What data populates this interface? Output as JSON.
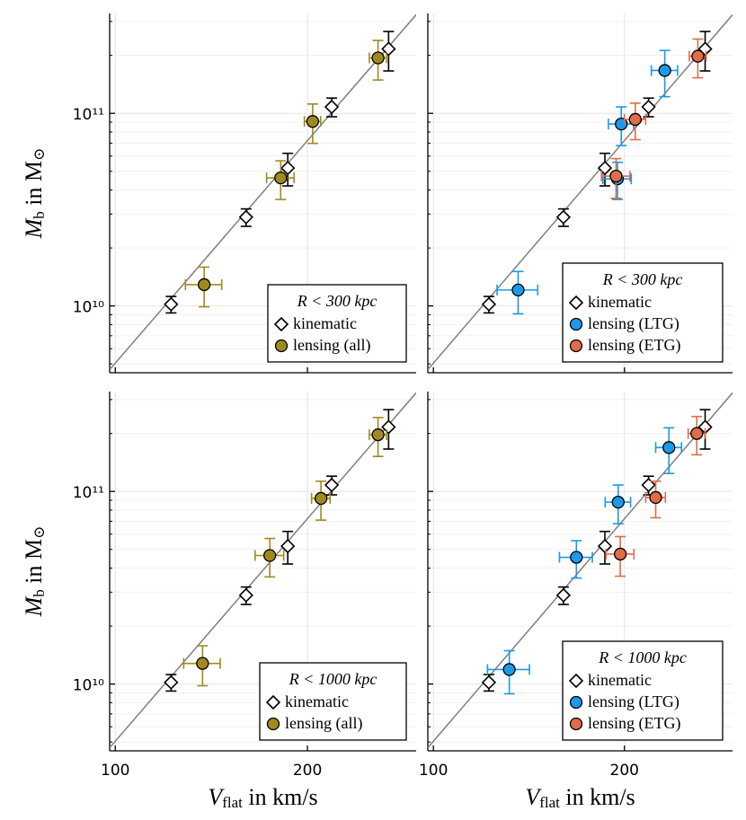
{
  "chart_data": [
    {
      "type": "scatter",
      "log_x": true,
      "log_y": true,
      "grid": true,
      "minor_grid": true,
      "xlim": [
        98,
        296
      ],
      "ylim": [
        4500000000.0,
        330000000000.0
      ],
      "xticks": [
        100,
        200
      ],
      "show_xtick_labels": false,
      "show_ytick_labels": true,
      "yticks": [
        {
          "value": 10000000000.0,
          "label": "10¹⁰"
        },
        {
          "value": 100000000000.0,
          "label": "10¹¹"
        }
      ],
      "ylabel": [
        {
          "text": "M",
          "sub": false
        },
        {
          "text": "b",
          "sub": true
        },
        {
          "text": " in M",
          "sub": false
        },
        {
          "text": "⊙",
          "sub": true
        }
      ],
      "legend": "bottom right",
      "legend_title": "R < 300 kpc",
      "line": {
        "x": [
          98,
          296
        ],
        "y": [
          4670000000.0,
          325000000000.0
        ],
        "color": "#808080"
      },
      "series": [
        {
          "name": "kinematic",
          "marker": "diamond",
          "color": "#ffffff",
          "error_color": "#000000",
          "x": [
            122.3,
            160.3,
            186.3,
            218.3,
            268
          ],
          "values": [
            10200000000.0,
            28900000000.0,
            52000000000.0,
            108000000000.0,
            216000000000.0
          ],
          "yerr": [
            1000000000.0,
            3000000000.0,
            10000000000.0,
            12000000000.0,
            50000000000.0
          ]
        },
        {
          "name": "lensing (all)",
          "marker": "circle",
          "color": "#a08a1e",
          "error_color": "#a08a1e",
          "x": [
            137.8,
            181.6,
            203.8,
            258
          ],
          "values": [
            12900000000.0,
            46200000000.0,
            90800000000.0,
            194000000000.0
          ],
          "xerr": [
            9,
            9,
            6,
            8
          ],
          "yerr": [
            3000000000.0,
            10500000000.0,
            21000000000.0,
            45000000000.0
          ]
        }
      ]
    },
    {
      "type": "scatter",
      "log_x": true,
      "log_y": true,
      "grid": true,
      "minor_grid": true,
      "xlim": [
        98,
        296
      ],
      "ylim": [
        4500000000.0,
        330000000000.0
      ],
      "xticks": [
        100,
        200
      ],
      "show_xtick_labels": false,
      "show_ytick_labels": false,
      "yticks": [
        10000000000.0,
        100000000000.0
      ],
      "legend": "bottom right",
      "legend_title": "R < 300 kpc",
      "line": {
        "x": [
          98,
          296
        ],
        "y": [
          4670000000.0,
          325000000000.0
        ],
        "color": "#808080"
      },
      "series": [
        {
          "name": "kinematic",
          "marker": "diamond",
          "color": "#ffffff",
          "error_color": "#000000",
          "x": [
            122.3,
            160.3,
            186.3,
            218.3,
            268
          ],
          "values": [
            10200000000.0,
            28900000000.0,
            52000000000.0,
            108000000000.0,
            216000000000.0
          ],
          "yerr": [
            1000000000.0,
            3000000000.0,
            10000000000.0,
            12000000000.0,
            50000000000.0
          ]
        },
        {
          "name": "lensing (LTG)",
          "marker": "circle",
          "color": "#1a9ae8",
          "error_color": "#1a9ae8",
          "x": [
            136,
            195,
            197.7,
            231.5
          ],
          "values": [
            12100000000.0,
            45700000000.0,
            88000000000.0,
            167000000000.0
          ],
          "xerr": [
            10,
            10,
            9,
            11
          ],
          "yerr": [
            3000000000.0,
            10000000000.0,
            20000000000.0,
            45000000000.0
          ]
        },
        {
          "name": "lensing (ETG)",
          "marker": "circle",
          "color": "#e06c48",
          "error_color": "#e06c48",
          "x": [
            194,
            208,
            261
          ],
          "values": [
            47200000000.0,
            93000000000.0,
            198000000000.0
          ],
          "xerr": [
            10,
            8,
            8
          ],
          "yerr": [
            11000000000.0,
            20000000000.0,
            45000000000.0
          ]
        }
      ]
    },
    {
      "type": "scatter",
      "log_x": true,
      "log_y": true,
      "grid": true,
      "minor_grid": true,
      "xlim": [
        98,
        296
      ],
      "ylim": [
        4500000000.0,
        330000000000.0
      ],
      "xticks": [
        100,
        200
      ],
      "show_xtick_labels": true,
      "show_ytick_labels": true,
      "yticks": [
        {
          "value": 10000000000.0,
          "label": "10¹⁰"
        },
        {
          "value": 100000000000.0,
          "label": "10¹¹"
        }
      ],
      "xlabel": [
        {
          "text": "V",
          "sub": false
        },
        {
          "text": "flat",
          "sub": true
        },
        {
          "text": " in km/s",
          "sub": false
        }
      ],
      "ylabel": [
        {
          "text": "M",
          "sub": false
        },
        {
          "text": "b",
          "sub": true
        },
        {
          "text": " in M",
          "sub": false
        },
        {
          "text": "⊙",
          "sub": true
        }
      ],
      "legend": "bottom right",
      "legend_title": "R < 1000 kpc",
      "line": {
        "x": [
          98,
          296
        ],
        "y": [
          4670000000.0,
          325000000000.0
        ],
        "color": "#808080"
      },
      "series": [
        {
          "name": "kinematic",
          "marker": "diamond",
          "color": "#ffffff",
          "error_color": "#000000",
          "x": [
            122.3,
            160.3,
            186.3,
            218.3,
            268
          ],
          "values": [
            10200000000.0,
            28900000000.0,
            52000000000.0,
            108000000000.0,
            216000000000.0
          ],
          "yerr": [
            1000000000.0,
            3000000000.0,
            10000000000.0,
            12000000000.0,
            50000000000.0
          ]
        },
        {
          "name": "lensing (all)",
          "marker": "circle",
          "color": "#a08a1e",
          "error_color": "#a08a1e",
          "x": [
            137,
            174.6,
            210,
            258
          ],
          "values": [
            12800000000.0,
            46500000000.0,
            92000000000.0,
            197000000000.0
          ],
          "xerr": [
            9,
            9,
            7,
            8
          ],
          "yerr": [
            3000000000.0,
            10500000000.0,
            21000000000.0,
            45000000000.0
          ]
        }
      ]
    },
    {
      "type": "scatter",
      "log_x": true,
      "log_y": true,
      "grid": true,
      "minor_grid": true,
      "xlim": [
        98,
        296
      ],
      "ylim": [
        4500000000.0,
        330000000000.0
      ],
      "xticks": [
        100,
        200
      ],
      "show_xtick_labels": true,
      "show_ytick_labels": false,
      "yticks": [
        10000000000.0,
        100000000000.0
      ],
      "xlabel": [
        {
          "text": "V",
          "sub": false
        },
        {
          "text": "flat",
          "sub": true
        },
        {
          "text": " in km/s",
          "sub": false
        }
      ],
      "legend": "bottom right",
      "legend_title": "R < 1000 kpc",
      "line": {
        "x": [
          98,
          296
        ],
        "y": [
          4670000000.0,
          325000000000.0
        ],
        "color": "#808080"
      },
      "series": [
        {
          "name": "kinematic",
          "marker": "diamond",
          "color": "#ffffff",
          "error_color": "#000000",
          "x": [
            122.3,
            160.3,
            186.3,
            218.3,
            268
          ],
          "values": [
            10200000000.0,
            28900000000.0,
            52000000000.0,
            108000000000.0,
            216000000000.0
          ],
          "yerr": [
            1000000000.0,
            3000000000.0,
            10000000000.0,
            12000000000.0,
            50000000000.0
          ]
        },
        {
          "name": "lensing (LTG)",
          "marker": "circle",
          "color": "#1a9ae8",
          "error_color": "#1a9ae8",
          "x": [
            131.7,
            168,
            195.5,
            235
          ],
          "values": [
            11900000000.0,
            45500000000.0,
            88000000000.0,
            169000000000.0
          ],
          "xerr": [
            10,
            10,
            9,
            11
          ],
          "yerr": [
            3000000000.0,
            10000000000.0,
            20000000000.0,
            45000000000.0
          ]
        },
        {
          "name": "lensing (ETG)",
          "marker": "circle",
          "color": "#e06c48",
          "error_color": "#e06c48",
          "x": [
            197,
            224,
            260
          ],
          "values": [
            47300000000.0,
            93000000000.0,
            200000000000.0
          ],
          "xerr": [
            10,
            8,
            8
          ],
          "yerr": [
            11000000000.0,
            20000000000.0,
            45000000000.0
          ]
        }
      ]
    }
  ]
}
